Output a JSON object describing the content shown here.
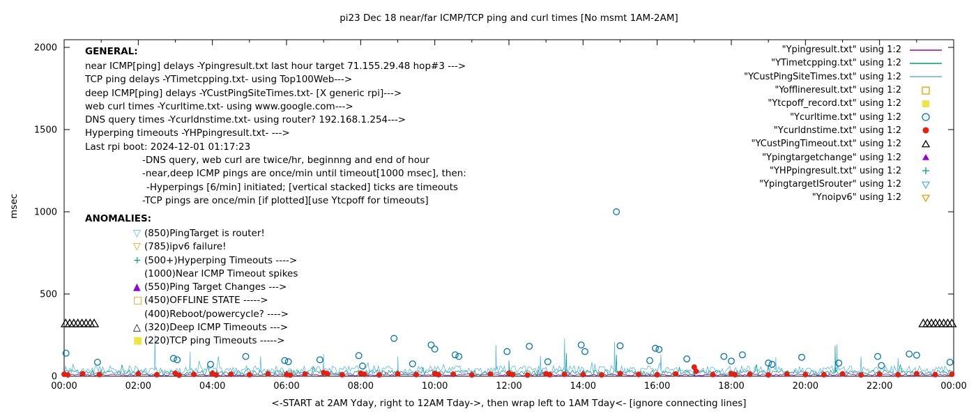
{
  "title": "pi23 Dec 18  near/far ICMP/TCP ping and curl times [No msmt 1AM-2AM]",
  "axes": {
    "ylabel": "msec",
    "xlabel": "<-START at 2AM Yday, right to 12AM Tday->, then wrap left to 1AM Tday<- [ignore connecting lines]"
  },
  "general": {
    "heading": "GENERAL:",
    "lines": [
      "near ICMP[ping] delays -Ypingresult.txt last hour target 71.155.29.48 hop#3 --->",
      "TCP ping delays -YTimetcpping.txt- using Top100Web--->",
      "deep ICMP[ping] delays -YCustPingSiteTimes.txt- [X generic rpi]--->",
      "web curl times -Ycurltime.txt- using www.google.com--->",
      "DNS query times -Ycurldnstime.txt- using router? 192.168.1.254--->",
      "Hyperping timeouts -YHPpingresult.txt- --->",
      "Last rpi boot: 2024-12-01 01:17:23",
      "-DNS query, web curl are twice/hr, beginnng and end of hour",
      "-near,deep ICMP pings are once/min until timeout[1000 msec], then:",
      "-Hyperpings [6/min] initiated; [vertical stacked] ticks are timeouts",
      "-TCP pings are once/min [if plotted][use Ytcpoff for timeouts]"
    ]
  },
  "anomalies": {
    "heading": "ANOMALIES:",
    "items": [
      {
        "marker": "▽",
        "color": "#56b4e9",
        "label": "(850)PingTarget is router!"
      },
      {
        "marker": "▽",
        "color": "#e69f00",
        "label": "(785)ipv6 failure!"
      },
      {
        "marker": "+",
        "color": "#009e73",
        "label": "(500+)Hyperping Timeouts ---->"
      },
      {
        "marker": "",
        "color": "#000000",
        "label": "(1000)Near ICMP Timeout spikes"
      },
      {
        "marker": "▲",
        "color": "#9400d3",
        "label": "(550)Ping Target Changes --->"
      },
      {
        "marker": "□",
        "color": "#e69f00",
        "label": "(450)OFFLINE STATE ----->"
      },
      {
        "marker": "",
        "color": "#000000",
        "label": "(400)Reboot/powercycle? ---->"
      },
      {
        "marker": "△",
        "color": "#000000",
        "label": "(320)Deep ICMP Timeouts --->"
      },
      {
        "marker": "■",
        "color": "#f0e442",
        "label": "(220)TCP ping Timeouts ----->"
      }
    ]
  },
  "chart_data": {
    "type": "line",
    "title": "pi23 Dec 18  near/far ICMP/TCP ping and curl times [No msmt 1AM-2AM]",
    "xlabel": "<-START at 2AM Yday, right to 12AM Tday->, then wrap left to 1AM Tday<- [ignore connecting lines]",
    "ylabel": "msec",
    "x_range_hours": [
      0,
      24
    ],
    "ylim": [
      0,
      2000
    ],
    "grid": false,
    "legend_position": "top-right-outside-style",
    "y_ticks": [
      0,
      500,
      1000,
      1500,
      2000
    ],
    "x_ticks": [
      "00:00",
      "02:00",
      "04:00",
      "06:00",
      "08:00",
      "10:00",
      "12:00",
      "14:00",
      "16:00",
      "18:00",
      "20:00",
      "22:00",
      "00:00"
    ],
    "series": [
      {
        "label": "\"Ypingresult.txt\" using 1:2",
        "kind": "line",
        "color": "#9400d3",
        "baseline": 8,
        "noise": 6,
        "seed": 7,
        "spikes": []
      },
      {
        "label": "\"YTimetcpping.txt\" using 1:2",
        "kind": "line",
        "color": "#009e73",
        "baseline": 22,
        "noise": 16,
        "seed": 13,
        "spikes": [
          [
            12.0,
            95
          ],
          [
            13.55,
            140
          ],
          [
            14.9,
            130
          ],
          [
            20.8,
            185
          ]
        ]
      },
      {
        "label": "\"YCustPingSiteTimes.txt\" using 1:2",
        "kind": "line",
        "color": "#56b4e9",
        "baseline": 38,
        "noise": 26,
        "seed": 29,
        "spikes": [
          [
            2.45,
            250
          ],
          [
            3.4,
            150
          ],
          [
            5.3,
            120
          ],
          [
            7.0,
            135
          ],
          [
            9.0,
            120
          ],
          [
            11.65,
            190
          ],
          [
            12.85,
            125
          ],
          [
            13.5,
            230
          ],
          [
            14.85,
            210
          ],
          [
            16.1,
            130
          ],
          [
            19.2,
            115
          ],
          [
            20.85,
            195
          ],
          [
            21.5,
            120
          ],
          [
            22.5,
            110
          ]
        ]
      },
      {
        "label": "\"Yofflineresult.txt\" using 1:2",
        "kind": "scatter",
        "marker": "square-open",
        "color": "#e69f00",
        "size": 5,
        "points": []
      },
      {
        "label": "\"Ytcpoff_record.txt\" using 1:2",
        "kind": "scatter",
        "marker": "square-filled",
        "color": "#f0e442",
        "size": 5,
        "points": []
      },
      {
        "label": "\"Ycurltime.txt\" using 1:2",
        "kind": "scatter",
        "marker": "circle-open",
        "color": "#0072b2",
        "size": 4.3,
        "points": [
          [
            0.05,
            140
          ],
          [
            0.9,
            85
          ],
          [
            2.95,
            108
          ],
          [
            3.05,
            100
          ],
          [
            3.95,
            72
          ],
          [
            4.9,
            120
          ],
          [
            5.95,
            95
          ],
          [
            6.05,
            88
          ],
          [
            6.9,
            100
          ],
          [
            7.95,
            125
          ],
          [
            8.05,
            62
          ],
          [
            8.9,
            230
          ],
          [
            9.4,
            75
          ],
          [
            9.9,
            190
          ],
          [
            10.0,
            165
          ],
          [
            10.55,
            130
          ],
          [
            10.65,
            120
          ],
          [
            11.95,
            150
          ],
          [
            12.55,
            182
          ],
          [
            13.05,
            88
          ],
          [
            13.95,
            190
          ],
          [
            14.05,
            150
          ],
          [
            14.9,
            1000
          ],
          [
            15.0,
            185
          ],
          [
            15.8,
            95
          ],
          [
            15.95,
            170
          ],
          [
            16.05,
            163
          ],
          [
            16.8,
            105
          ],
          [
            17.8,
            120
          ],
          [
            18.0,
            92
          ],
          [
            18.3,
            130
          ],
          [
            19.0,
            80
          ],
          [
            19.1,
            72
          ],
          [
            19.9,
            115
          ],
          [
            20.9,
            80
          ],
          [
            21.95,
            120
          ],
          [
            22.05,
            65
          ],
          [
            22.8,
            135
          ],
          [
            23.0,
            128
          ],
          [
            23.9,
            85
          ]
        ]
      },
      {
        "label": "\"Ycurldnstime.txt\" using 1:2",
        "kind": "scatter",
        "marker": "circle-filled",
        "color": "#e51e10",
        "size": 4.4,
        "points": [
          [
            0.0,
            12
          ],
          [
            0.1,
            8
          ],
          [
            0.5,
            15
          ],
          [
            0.95,
            10
          ],
          [
            2.0,
            14
          ],
          [
            2.5,
            9
          ],
          [
            3.0,
            18
          ],
          [
            3.1,
            6
          ],
          [
            3.5,
            11
          ],
          [
            4.0,
            16
          ],
          [
            4.1,
            8
          ],
          [
            4.5,
            12
          ],
          [
            5.0,
            9
          ],
          [
            5.5,
            14
          ],
          [
            6.0,
            10
          ],
          [
            6.1,
            7
          ],
          [
            6.5,
            13
          ],
          [
            7.0,
            22
          ],
          [
            7.1,
            15
          ],
          [
            7.5,
            9
          ],
          [
            8.0,
            18
          ],
          [
            8.1,
            12
          ],
          [
            8.5,
            8
          ],
          [
            9.0,
            14
          ],
          [
            9.5,
            10
          ],
          [
            10.0,
            16
          ],
          [
            10.1,
            9
          ],
          [
            10.5,
            12
          ],
          [
            11.0,
            8
          ],
          [
            11.5,
            13
          ],
          [
            12.0,
            18
          ],
          [
            12.1,
            10
          ],
          [
            12.5,
            7
          ],
          [
            13.0,
            15
          ],
          [
            13.1,
            9
          ],
          [
            13.5,
            12
          ],
          [
            14.0,
            10
          ],
          [
            14.5,
            8
          ],
          [
            15.0,
            16
          ],
          [
            15.5,
            11
          ],
          [
            16.0,
            9
          ],
          [
            16.5,
            14
          ],
          [
            17.0,
            55
          ],
          [
            17.05,
            30
          ],
          [
            17.5,
            10
          ],
          [
            18.0,
            15
          ],
          [
            18.1,
            9
          ],
          [
            18.5,
            12
          ],
          [
            19.0,
            8
          ],
          [
            19.5,
            13
          ],
          [
            20.0,
            10
          ],
          [
            20.5,
            9
          ],
          [
            21.0,
            14
          ],
          [
            21.5,
            8
          ],
          [
            22.0,
            12
          ],
          [
            22.5,
            9
          ],
          [
            23.0,
            15
          ],
          [
            23.5,
            10
          ],
          [
            23.95,
            12
          ]
        ]
      },
      {
        "label": "\"YCustPingTimeout.txt\" using 1:2",
        "kind": "scatter",
        "marker": "triangle-up-open",
        "color": "#000000",
        "size": 6,
        "points": [
          [
            0.04,
            320
          ],
          [
            0.15,
            320
          ],
          [
            0.26,
            320
          ],
          [
            0.37,
            320
          ],
          [
            0.48,
            320
          ],
          [
            0.59,
            320
          ],
          [
            0.7,
            320
          ],
          [
            0.81,
            320
          ],
          [
            23.18,
            320
          ],
          [
            23.29,
            320
          ],
          [
            23.4,
            320
          ],
          [
            23.51,
            320
          ],
          [
            23.62,
            320
          ],
          [
            23.73,
            320
          ],
          [
            23.84,
            320
          ],
          [
            23.95,
            320
          ]
        ]
      },
      {
        "label": "\"Ypingtargetchange\" using 1:2",
        "kind": "scatter",
        "marker": "triangle-up-filled",
        "color": "#9400d3",
        "size": 6,
        "points": []
      },
      {
        "label": "\"YHPpingresult.txt\" using 1:2",
        "kind": "scatter",
        "marker": "plus",
        "color": "#009e73",
        "size": 5,
        "points": []
      },
      {
        "label": "\"YpingtargetISrouter\" using 1:2",
        "kind": "scatter",
        "marker": "triangle-down-open",
        "color": "#56b4e9",
        "size": 6,
        "points": []
      },
      {
        "label": "\"Ynoipv6\" using 1:2",
        "kind": "scatter",
        "marker": "triangle-down-open",
        "color": "#e69f00",
        "size": 6,
        "points": []
      }
    ]
  }
}
